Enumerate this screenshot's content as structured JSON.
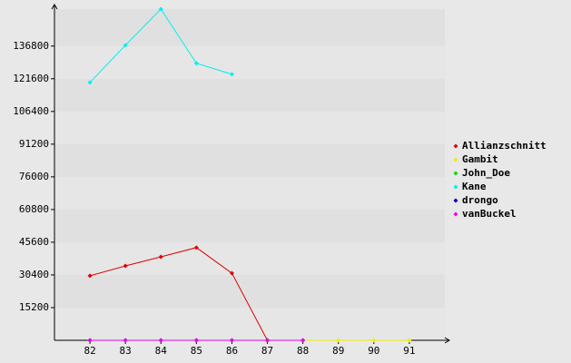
{
  "chart_data": {
    "type": "line",
    "categories": [
      "82",
      "83",
      "84",
      "85",
      "86",
      "87",
      "88",
      "89",
      "90",
      "91"
    ],
    "series": [
      {
        "name": "Allianzschnitt",
        "color": "#dd0000",
        "values": [
          30000,
          34600,
          38800,
          43100,
          31200,
          0,
          null,
          null,
          null,
          null
        ]
      },
      {
        "name": "Gambit",
        "color": "#eeee00",
        "values": [
          0,
          0,
          0,
          0,
          0,
          0,
          0,
          0,
          0,
          0
        ]
      },
      {
        "name": "John_Doe",
        "color": "#00dd00",
        "values": [
          0,
          0,
          0,
          0,
          0,
          0,
          0,
          null,
          null,
          null
        ]
      },
      {
        "name": "Kane",
        "color": "#00eeee",
        "values": [
          119900,
          137200,
          154000,
          128800,
          123700,
          null,
          null,
          null,
          null,
          null
        ]
      },
      {
        "name": "drongo",
        "color": "#0000aa",
        "values": [
          0,
          0,
          0,
          0,
          0,
          0,
          0,
          null,
          null,
          null
        ]
      },
      {
        "name": "vanBuckel",
        "color": "#ee00ee",
        "values": [
          0,
          0,
          0,
          0,
          0,
          0,
          0,
          null,
          null,
          null
        ]
      }
    ],
    "ylim": [
      0,
      154000
    ],
    "yticks": [
      15200,
      30400,
      45600,
      60800,
      76000,
      91200,
      106400,
      121600,
      136800
    ],
    "grid": true,
    "legend": "right"
  }
}
